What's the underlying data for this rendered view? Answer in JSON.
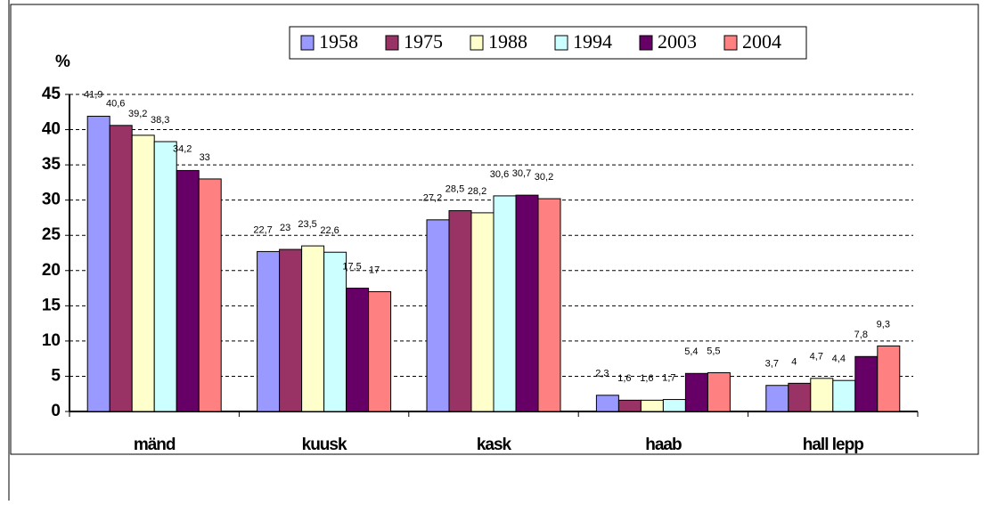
{
  "chart_data": {
    "type": "bar",
    "y_label": "%",
    "categories": [
      "mänd",
      "kuusk",
      "kask",
      "haab",
      "hall lepp"
    ],
    "series": [
      {
        "name": "1958",
        "color": "#9999ff",
        "values": [
          41.9,
          22.7,
          27.2,
          2.3,
          3.7
        ],
        "value_labels": [
          "41,9",
          "22,7",
          "27,2",
          "2,3",
          "3,7"
        ]
      },
      {
        "name": "1975",
        "color": "#993366",
        "values": [
          40.6,
          23,
          28.5,
          1.6,
          4
        ],
        "value_labels": [
          "40,6",
          "23",
          "28,5",
          "1,6",
          "4"
        ]
      },
      {
        "name": "1988",
        "color": "#ffffcc",
        "values": [
          39.2,
          23.5,
          28.2,
          1.6,
          4.7
        ],
        "value_labels": [
          "39,2",
          "23,5",
          "28,2",
          "1,6",
          "4,7"
        ]
      },
      {
        "name": "1994",
        "color": "#ccffff",
        "values": [
          38.3,
          22.6,
          30.6,
          1.7,
          4.4
        ],
        "value_labels": [
          "38,3",
          "22,6",
          "30,6",
          "1,7",
          "4,4"
        ]
      },
      {
        "name": "2003",
        "color": "#660066",
        "values": [
          34.2,
          17.5,
          30.7,
          5.4,
          7.8
        ],
        "value_labels": [
          "34,2",
          "17,5",
          "30,7",
          "5,4",
          "7,8"
        ]
      },
      {
        "name": "2004",
        "color": "#ff8080",
        "values": [
          33,
          17,
          30.2,
          5.5,
          9.3
        ],
        "value_labels": [
          "33",
          "17",
          "30,2",
          "5,5",
          "9,3"
        ]
      }
    ],
    "ylim": [
      0,
      45
    ],
    "yticks": [
      0,
      5,
      10,
      15,
      20,
      25,
      30,
      35,
      40,
      45
    ],
    "grid": true,
    "legend": "top"
  }
}
